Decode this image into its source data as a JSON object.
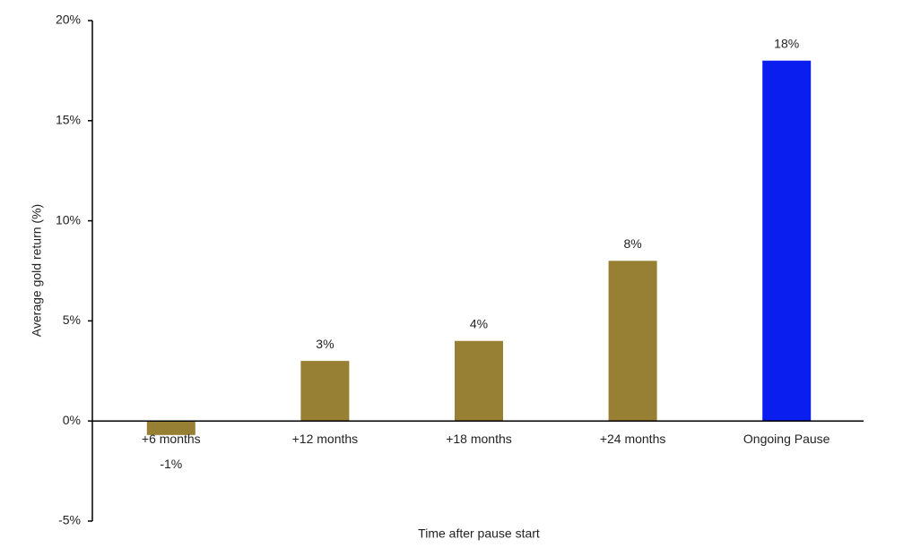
{
  "chart_data": {
    "type": "bar",
    "x_label": "Time after pause start",
    "y_label": "Average gold return (%)",
    "categories": [
      "+6 months",
      "+12 months",
      "+18 months",
      "+24 months",
      "Ongoing Pause"
    ],
    "values": [
      -0.7,
      3,
      4,
      8,
      18
    ],
    "value_labels": [
      "-1%",
      "3%",
      "4%",
      "8%",
      "18%"
    ],
    "colors": [
      "#977f34",
      "#977f34",
      "#977f34",
      "#977f34",
      "#0a1ef0"
    ],
    "ylim": [
      -5,
      20
    ],
    "yticks": [
      {
        "value": -5,
        "label": "-5%"
      },
      {
        "value": 0,
        "label": "0%"
      },
      {
        "value": 5,
        "label": "5%"
      },
      {
        "value": 10,
        "label": "10%"
      },
      {
        "value": 15,
        "label": "15%"
      },
      {
        "value": 20,
        "label": "20%"
      }
    ],
    "grid": false
  }
}
